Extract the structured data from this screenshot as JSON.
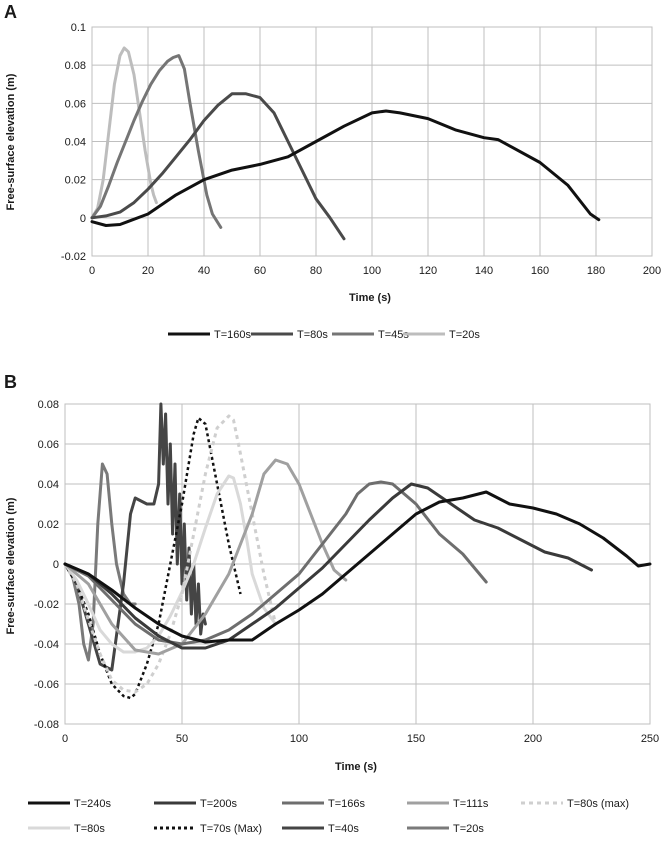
{
  "chart_data": [
    {
      "panel": "A",
      "type": "line",
      "title": "",
      "xlabel": "Time (s)",
      "ylabel": "Free-surface elevation (m)",
      "xlim": [
        0,
        200
      ],
      "ylim": [
        -0.02,
        0.1
      ],
      "xticks": [
        0,
        20,
        40,
        60,
        80,
        100,
        120,
        140,
        160,
        180,
        200
      ],
      "yticks": [
        -0.02,
        0,
        0.02,
        0.04,
        0.06,
        0.08,
        0.1
      ],
      "ytick_labels": [
        "-0.02",
        "0",
        "0.02",
        "0.04",
        "0.06",
        "0.08",
        "0.1"
      ],
      "legend_position": "bottom",
      "series": [
        {
          "name": "T=160s",
          "color": "#111111",
          "width": 3,
          "dash": "",
          "x": [
            0,
            5,
            10,
            20,
            30,
            40,
            50,
            60,
            70,
            80,
            90,
            100,
            105,
            110,
            120,
            130,
            140,
            145,
            150,
            160,
            170,
            178,
            181
          ],
          "y": [
            -0.002,
            -0.004,
            -0.0035,
            0.002,
            0.012,
            0.02,
            0.025,
            0.028,
            0.032,
            0.04,
            0.048,
            0.055,
            0.056,
            0.055,
            0.052,
            0.046,
            0.042,
            0.041,
            0.037,
            0.029,
            0.017,
            0.002,
            -0.001
          ]
        },
        {
          "name": "T=80s",
          "color": "#4a4a4a",
          "width": 3,
          "dash": "",
          "x": [
            0,
            5,
            10,
            15,
            20,
            25,
            30,
            35,
            40,
            45,
            50,
            55,
            60,
            65,
            70,
            75,
            80,
            85,
            90
          ],
          "y": [
            0,
            0.001,
            0.003,
            0.008,
            0.015,
            0.023,
            0.032,
            0.041,
            0.051,
            0.059,
            0.065,
            0.065,
            0.063,
            0.055,
            0.04,
            0.025,
            0.01,
            0.0,
            -0.011
          ]
        },
        {
          "name": "T=45s",
          "color": "#757575",
          "width": 3,
          "dash": "",
          "x": [
            0,
            3,
            6,
            9,
            12,
            15,
            18,
            21,
            24,
            27,
            29,
            31,
            33,
            35,
            38,
            41,
            43,
            46
          ],
          "y": [
            0,
            0.006,
            0.017,
            0.029,
            0.04,
            0.051,
            0.061,
            0.07,
            0.077,
            0.082,
            0.084,
            0.085,
            0.078,
            0.06,
            0.035,
            0.012,
            0.002,
            -0.005
          ]
        },
        {
          "name": "T=20s",
          "color": "#bdbdbd",
          "width": 3,
          "dash": "",
          "x": [
            0,
            2,
            4,
            6,
            8,
            10,
            11.5,
            13,
            15,
            17,
            19,
            21,
            22,
            23
          ],
          "y": [
            0,
            0.005,
            0.02,
            0.045,
            0.07,
            0.085,
            0.089,
            0.087,
            0.075,
            0.055,
            0.035,
            0.018,
            0.012,
            0.008
          ]
        }
      ]
    },
    {
      "panel": "B",
      "type": "line",
      "title": "",
      "xlabel": "Time (s)",
      "ylabel": "Free-surface elevation (m)",
      "xlim": [
        0,
        250
      ],
      "ylim": [
        -0.08,
        0.08
      ],
      "xticks": [
        0,
        50,
        100,
        150,
        200,
        250
      ],
      "yticks": [
        -0.08,
        -0.06,
        -0.04,
        -0.02,
        0,
        0.02,
        0.04,
        0.06,
        0.08
      ],
      "ytick_labels": [
        "-0.08",
        "-0.06",
        "-0.04",
        "-0.02",
        "0",
        "0.02",
        "0.04",
        "0.06",
        "0.08"
      ],
      "legend_position": "bottom",
      "series": [
        {
          "name": "T=240s",
          "color": "#111111",
          "width": 3,
          "dash": "",
          "x": [
            0,
            10,
            20,
            30,
            40,
            50,
            60,
            70,
            80,
            90,
            100,
            110,
            120,
            130,
            140,
            150,
            160,
            170,
            180,
            190,
            200,
            210,
            220,
            230,
            240,
            245,
            250
          ],
          "y": [
            0,
            -0.005,
            -0.013,
            -0.022,
            -0.03,
            -0.036,
            -0.039,
            -0.038,
            -0.038,
            -0.03,
            -0.023,
            -0.015,
            -0.005,
            0.005,
            0.015,
            0.025,
            0.031,
            0.033,
            0.036,
            0.03,
            0.028,
            0.025,
            0.02,
            0.013,
            0.004,
            -0.001,
            0
          ]
        },
        {
          "name": "T=200s",
          "color": "#3a3a3a",
          "width": 3,
          "dash": "",
          "x": [
            0,
            10,
            20,
            30,
            40,
            50,
            60,
            70,
            80,
            90,
            100,
            110,
            120,
            130,
            140,
            148,
            155,
            165,
            175,
            185,
            195,
            205,
            215,
            225
          ],
          "y": [
            0,
            -0.005,
            -0.015,
            -0.027,
            -0.036,
            -0.042,
            -0.042,
            -0.038,
            -0.03,
            -0.022,
            -0.012,
            -0.002,
            0.01,
            0.022,
            0.033,
            0.04,
            0.038,
            0.03,
            0.022,
            0.018,
            0.012,
            0.006,
            0.003,
            -0.003
          ]
        },
        {
          "name": "T=166s",
          "color": "#6e6e6e",
          "width": 3,
          "dash": "",
          "x": [
            0,
            10,
            20,
            30,
            40,
            50,
            60,
            70,
            80,
            90,
            100,
            110,
            120,
            125,
            130,
            135,
            140,
            150,
            160,
            170,
            180
          ],
          "y": [
            0,
            -0.006,
            -0.018,
            -0.03,
            -0.038,
            -0.04,
            -0.038,
            -0.033,
            -0.025,
            -0.015,
            -0.005,
            0.01,
            0.025,
            0.035,
            0.04,
            0.041,
            0.04,
            0.03,
            0.015,
            0.005,
            -0.009
          ]
        },
        {
          "name": "T=111s",
          "color": "#a0a0a0",
          "width": 3,
          "dash": "",
          "x": [
            0,
            10,
            20,
            30,
            40,
            50,
            60,
            70,
            80,
            85,
            90,
            95,
            100,
            105,
            110,
            115,
            120
          ],
          "y": [
            0,
            -0.01,
            -0.03,
            -0.043,
            -0.045,
            -0.04,
            -0.025,
            -0.005,
            0.025,
            0.045,
            0.052,
            0.05,
            0.04,
            0.025,
            0.01,
            -0.003,
            -0.008
          ]
        },
        {
          "name": "T=80s (max)",
          "color": "#cfcfcf",
          "width": 3,
          "dash": "4 4",
          "x": [
            0,
            5,
            10,
            15,
            20,
            25,
            30,
            35,
            40,
            45,
            50,
            55,
            60,
            65,
            70,
            72,
            75,
            80,
            85,
            90
          ],
          "y": [
            0,
            -0.01,
            -0.028,
            -0.045,
            -0.058,
            -0.063,
            -0.064,
            -0.06,
            -0.05,
            -0.035,
            -0.015,
            0.015,
            0.045,
            0.068,
            0.074,
            0.072,
            0.055,
            0.025,
            -0.005,
            -0.03
          ]
        },
        {
          "name": "T=80s",
          "color": "#d9d9d9",
          "width": 3,
          "dash": "",
          "x": [
            0,
            5,
            10,
            15,
            20,
            25,
            30,
            35,
            40,
            45,
            50,
            55,
            60,
            65,
            70,
            72,
            75,
            78,
            80,
            85,
            90
          ],
          "y": [
            0,
            -0.008,
            -0.02,
            -0.033,
            -0.04,
            -0.044,
            -0.044,
            -0.042,
            -0.036,
            -0.026,
            -0.014,
            0.0,
            0.018,
            0.035,
            0.044,
            0.043,
            0.03,
            0.01,
            -0.005,
            -0.022,
            -0.03
          ]
        },
        {
          "name": "T=70s (Max)",
          "color": "#111111",
          "width": 2.5,
          "dash": "3 3",
          "x": [
            0,
            5,
            10,
            15,
            20,
            25,
            28,
            30,
            35,
            40,
            45,
            50,
            55,
            57,
            60,
            65,
            70,
            75
          ],
          "y": [
            0,
            -0.01,
            -0.025,
            -0.045,
            -0.06,
            -0.066,
            -0.067,
            -0.065,
            -0.05,
            -0.03,
            0.0,
            0.03,
            0.065,
            0.073,
            0.07,
            0.04,
            0.01,
            -0.015
          ]
        },
        {
          "name": "T=40s",
          "color": "#454545",
          "width": 3,
          "dash": "",
          "x": [
            0,
            5,
            10,
            15,
            20,
            25,
            28,
            30,
            35,
            38,
            40,
            41,
            42,
            43,
            44,
            45,
            46,
            47,
            48,
            49,
            50,
            51,
            52,
            53,
            54,
            55,
            56,
            57,
            58,
            59,
            60
          ],
          "y": [
            0,
            -0.01,
            -0.03,
            -0.05,
            -0.053,
            -0.01,
            0.025,
            0.033,
            0.03,
            0.03,
            0.04,
            0.08,
            0.05,
            0.075,
            0.03,
            0.06,
            0.015,
            0.05,
            0.0,
            0.035,
            -0.01,
            0.02,
            -0.018,
            0.008,
            -0.025,
            0.0,
            -0.03,
            -0.01,
            -0.035,
            -0.025,
            -0.03
          ]
        },
        {
          "name": "T=20s",
          "color": "#7a7a7a",
          "width": 3,
          "dash": "",
          "x": [
            0,
            3,
            6,
            8,
            10,
            12,
            14,
            16,
            18,
            20,
            22,
            25,
            28,
            30
          ],
          "y": [
            0,
            -0.005,
            -0.02,
            -0.04,
            -0.048,
            -0.03,
            0.02,
            0.05,
            0.045,
            0.02,
            0.0,
            -0.015,
            -0.02,
            -0.02
          ]
        }
      ]
    }
  ]
}
